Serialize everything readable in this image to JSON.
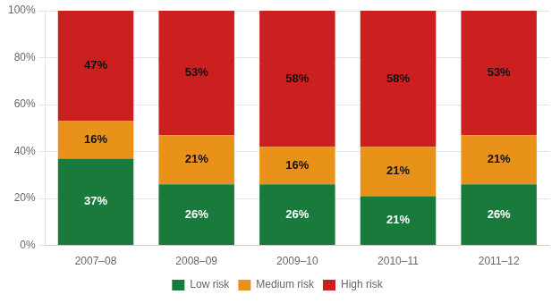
{
  "chart_data": {
    "type": "bar",
    "categories": [
      "2007–08",
      "2008–09",
      "2009–10",
      "2010–11",
      "2011–12"
    ],
    "series": [
      {
        "name": "Low risk",
        "color": "#1a7a3c",
        "values": [
          37,
          26,
          26,
          21,
          26
        ],
        "value_labels": [
          "37%",
          "26%",
          "26%",
          "21%",
          "26%"
        ]
      },
      {
        "name": "Medium risk",
        "color": "#e8921a",
        "values": [
          16,
          21,
          16,
          21,
          21
        ],
        "value_labels": [
          "16%",
          "21%",
          "16%",
          "21%",
          "21%"
        ]
      },
      {
        "name": "High risk",
        "color": "#cc1f1f",
        "values": [
          47,
          53,
          58,
          58,
          53
        ],
        "value_labels": [
          "47%",
          "53%",
          "58%",
          "58%",
          "53%"
        ]
      }
    ],
    "stacked": true,
    "data_labels": true,
    "ylim": [
      0,
      100
    ],
    "yticks": [
      {
        "value": 0,
        "label": "0%"
      },
      {
        "value": 20,
        "label": "20%"
      },
      {
        "value": 40,
        "label": "40%"
      },
      {
        "value": 60,
        "label": "60%"
      },
      {
        "value": 80,
        "label": "80%"
      },
      {
        "value": 100,
        "label": "100%"
      }
    ],
    "grid": true,
    "legend": "bottom"
  }
}
